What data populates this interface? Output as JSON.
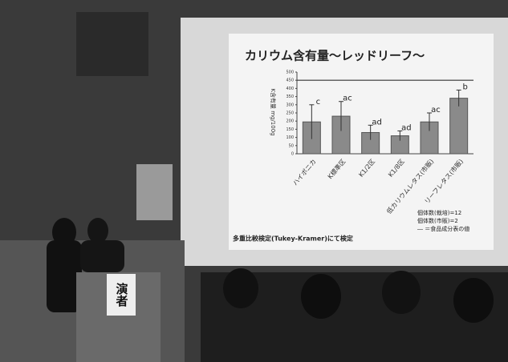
{
  "chart_data": {
    "type": "bar",
    "title": "カリウム含有量～レッドリーフ～",
    "y_label": "K含有量 mg/100g",
    "categories": [
      "ハイポニカ",
      "K標準区",
      "K1/2区",
      "K1/8区",
      "低カリウムレタス(市販)",
      "リーフレタス(市販)"
    ],
    "values": [
      195,
      230,
      130,
      110,
      195,
      340
    ],
    "errors": [
      105,
      90,
      45,
      30,
      55,
      50
    ],
    "annotations": [
      "c",
      "ac",
      "ad",
      "ad",
      "ac",
      "b"
    ],
    "color": "#8a8a8a",
    "reference_value": 450,
    "ylim": [
      0,
      500
    ],
    "yticks": [
      0,
      50,
      100,
      150,
      200,
      250,
      300,
      350,
      400,
      450,
      500
    ],
    "grid": false,
    "notes": [
      "個体数(栽培)=12",
      "個体数(市販)=2",
      "― ＝食品成分表の値"
    ],
    "footnote": "多重比較検定(Tukey-Kramer)にて検定"
  },
  "podium_sign": "演者"
}
